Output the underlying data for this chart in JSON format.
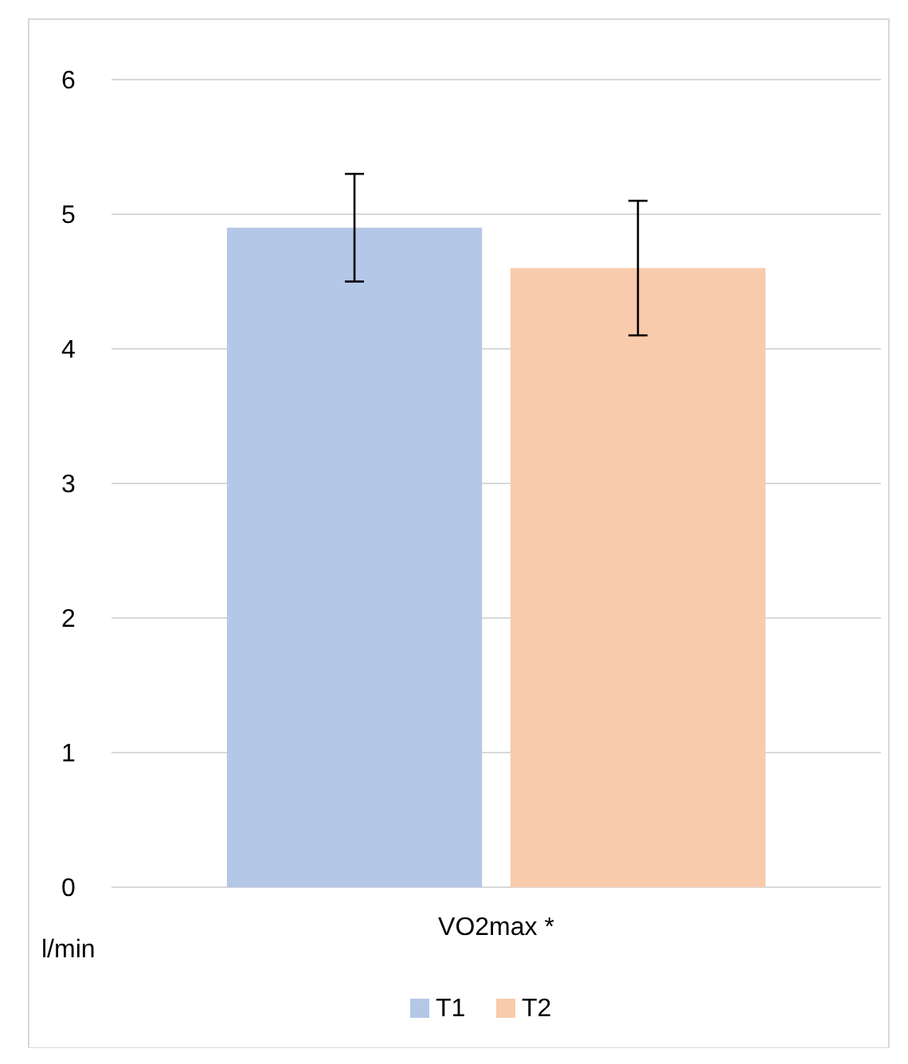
{
  "chart_data": {
    "type": "bar",
    "categories": [
      "VO2max *"
    ],
    "ylabel": "l/min",
    "series": [
      {
        "name": "T1",
        "color": "#b4c7e7",
        "values": [
          4.9
        ],
        "errors": [
          0.4
        ]
      },
      {
        "name": "T2",
        "color": "#f8cbad",
        "values": [
          4.6
        ],
        "errors": [
          0.5
        ]
      }
    ],
    "ylim": [
      0,
      6
    ],
    "yticks": [
      0,
      1,
      2,
      3,
      4,
      5,
      6
    ],
    "grid": "y",
    "legend": "bottom"
  }
}
